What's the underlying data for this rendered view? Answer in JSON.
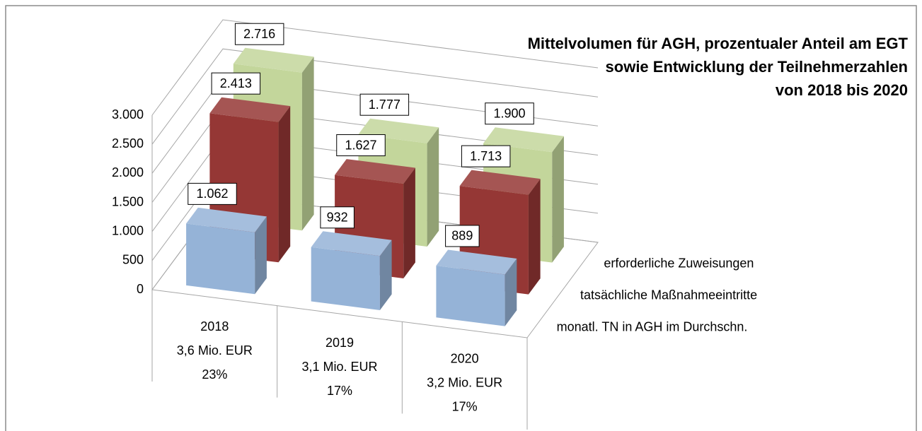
{
  "chart_data": {
    "type": "bar3d",
    "title": [
      "Mittelvolumen für AGH, prozentualer Anteil am EGT",
      "sowie Entwicklung der Teilnehmerzahlen",
      "von 2018 bis 2020"
    ],
    "categories": [
      [
        "2018",
        "3,6 Mio. EUR",
        "23%"
      ],
      [
        "2019",
        "3,1 Mio. EUR",
        "17%"
      ],
      [
        "2020",
        "3,2 Mio. EUR",
        "17%"
      ]
    ],
    "series": [
      {
        "name": "monatl. TN in AGH im Durchschn.",
        "color": "#95b3d7",
        "values": [
          1062,
          932,
          889
        ],
        "value_labels": [
          "1.062",
          "932",
          "889"
        ]
      },
      {
        "name": "tatsächliche Maßnahmeeintritte",
        "color": "#953735",
        "values": [
          2413,
          1627,
          1713
        ],
        "value_labels": [
          "2.413",
          "1.627",
          "1.713"
        ]
      },
      {
        "name": "erforderliche Zuweisungen",
        "color": "#c3d69b",
        "values": [
          2716,
          1777,
          1900
        ],
        "value_labels": [
          "2.716",
          "1.777",
          "1.900"
        ]
      }
    ],
    "ylim": [
      0,
      3000
    ],
    "yticks": [
      0,
      500,
      {
        "value": 1000,
        "label": "1.000"
      },
      {
        "value": 1500,
        "label": "1.500"
      },
      {
        "value": 2000,
        "label": "2.000"
      },
      {
        "value": 2500,
        "label": "2.500"
      },
      {
        "value": 3000,
        "label": "3.000"
      }
    ],
    "grid": true
  }
}
